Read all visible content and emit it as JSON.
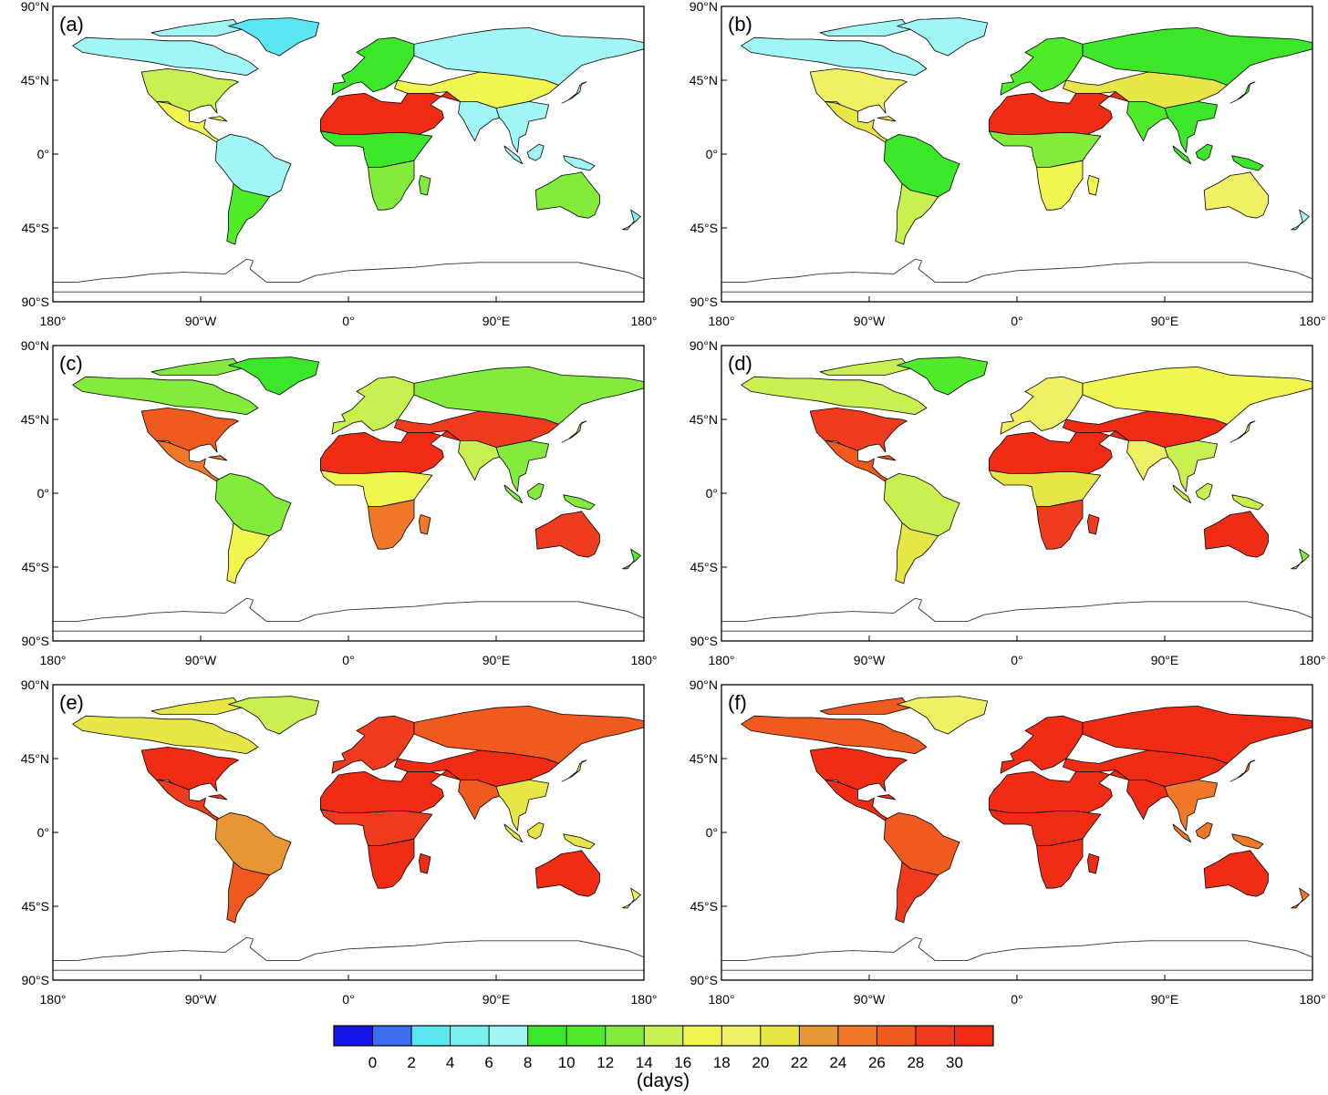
{
  "figure": {
    "units_label": "(days)",
    "colorbar": {
      "colors": [
        "#1414e6",
        "#3c6ef0",
        "#5ae6f0",
        "#78f0f0",
        "#a0f5f5",
        "#3ce628",
        "#50eb28",
        "#82eb3c",
        "#c8f050",
        "#f0f550",
        "#f0f064",
        "#e6e646",
        "#e69632",
        "#f07828",
        "#f05a1e",
        "#f03c1e",
        "#f02d14"
      ],
      "tick_labels": [
        "0",
        "2",
        "4",
        "6",
        "8",
        "10",
        "12",
        "14",
        "16",
        "18",
        "20",
        "22",
        "24",
        "26",
        "28",
        "30"
      ]
    },
    "axes": {
      "lon_ticks": [
        "180°",
        "90°W",
        "0°",
        "90°E",
        "180°"
      ],
      "lat_ticks": [
        "90°N",
        "45°N",
        "0°",
        "45°S",
        "90°S"
      ]
    },
    "panels": [
      {
        "label": "(a)",
        "scenario_index": 0
      },
      {
        "label": "(b)",
        "scenario_index": 1
      },
      {
        "label": "(c)",
        "scenario_index": 2
      },
      {
        "label": "(d)",
        "scenario_index": 3
      },
      {
        "label": "(e)",
        "scenario_index": 4
      },
      {
        "label": "(f)",
        "scenario_index": 5
      }
    ],
    "region_values_days": {
      "columns": [
        "a",
        "b",
        "c",
        "d",
        "e",
        "f"
      ],
      "north_america_high_lat": [
        6,
        7,
        12,
        14,
        20,
        26
      ],
      "greenland": [
        2,
        6,
        8,
        10,
        14,
        18
      ],
      "north_america_mid": [
        14,
        18,
        26,
        29,
        30,
        30
      ],
      "central_america": [
        16,
        20,
        24,
        26,
        29,
        30
      ],
      "south_america_north": [
        6,
        8,
        12,
        14,
        22,
        26
      ],
      "south_america_south": [
        10,
        14,
        16,
        20,
        26,
        29
      ],
      "europe": [
        8,
        10,
        14,
        18,
        28,
        30
      ],
      "siberia": [
        6,
        8,
        12,
        16,
        26,
        30
      ],
      "sahara_arabia": [
        30,
        30,
        30,
        30,
        30,
        30
      ],
      "central_africa": [
        8,
        12,
        16,
        20,
        28,
        30
      ],
      "southern_africa": [
        12,
        16,
        24,
        28,
        30,
        30
      ],
      "central_asia": [
        16,
        20,
        28,
        30,
        30,
        30
      ],
      "india": [
        6,
        10,
        14,
        18,
        26,
        30
      ],
      "southeast_asia": [
        6,
        8,
        12,
        14,
        20,
        24
      ],
      "australia": [
        12,
        18,
        28,
        30,
        30,
        30
      ],
      "new_zealand": [
        4,
        6,
        10,
        12,
        16,
        24
      ]
    }
  }
}
